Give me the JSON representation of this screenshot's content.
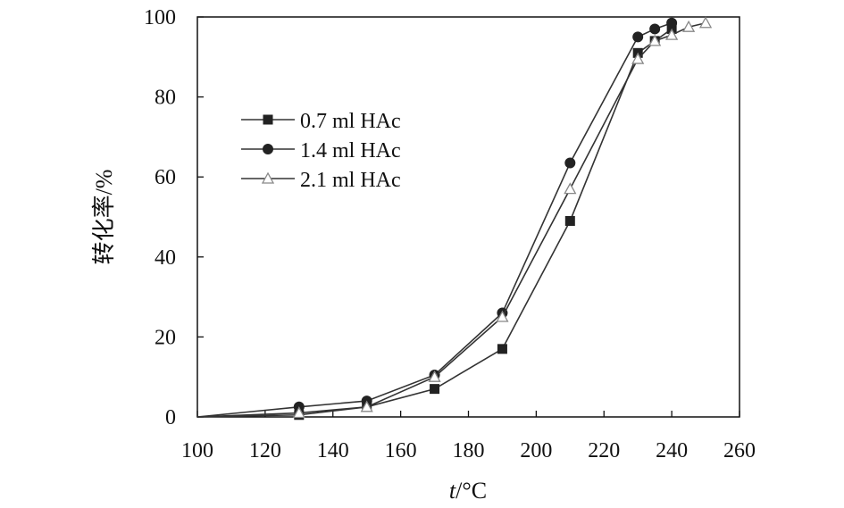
{
  "chart_data": {
    "type": "line",
    "xlabel_italic": "t",
    "xlabel_rest": "/°C",
    "ylabel": "转化率/%",
    "xlim": [
      100,
      260
    ],
    "ylim": [
      0,
      100
    ],
    "xticks": [
      100,
      120,
      140,
      160,
      180,
      200,
      220,
      240,
      260
    ],
    "yticks": [
      0,
      20,
      40,
      60,
      80,
      100
    ],
    "grid": false,
    "legend_position": "upper-left",
    "series": [
      {
        "name": "0.7 ml HAc",
        "marker": "square",
        "x": [
          100,
          130,
          150,
          170,
          190,
          210,
          230,
          235,
          240
        ],
        "y": [
          0,
          0.5,
          2.5,
          7,
          17,
          49,
          91,
          94,
          97
        ]
      },
      {
        "name": "1.4 ml HAc",
        "marker": "circle",
        "x": [
          100,
          130,
          150,
          170,
          190,
          210,
          230,
          235,
          240
        ],
        "y": [
          0,
          2.5,
          4,
          10.5,
          26,
          63.5,
          95,
          97,
          98.5
        ]
      },
      {
        "name": "2.1 ml HAc",
        "marker": "triangle-open",
        "x": [
          100,
          130,
          150,
          170,
          190,
          210,
          230,
          235,
          240,
          245,
          250
        ],
        "y": [
          0,
          1,
          2.5,
          10,
          25,
          57,
          89.5,
          94,
          95.5,
          97.5,
          98.5
        ]
      }
    ]
  }
}
